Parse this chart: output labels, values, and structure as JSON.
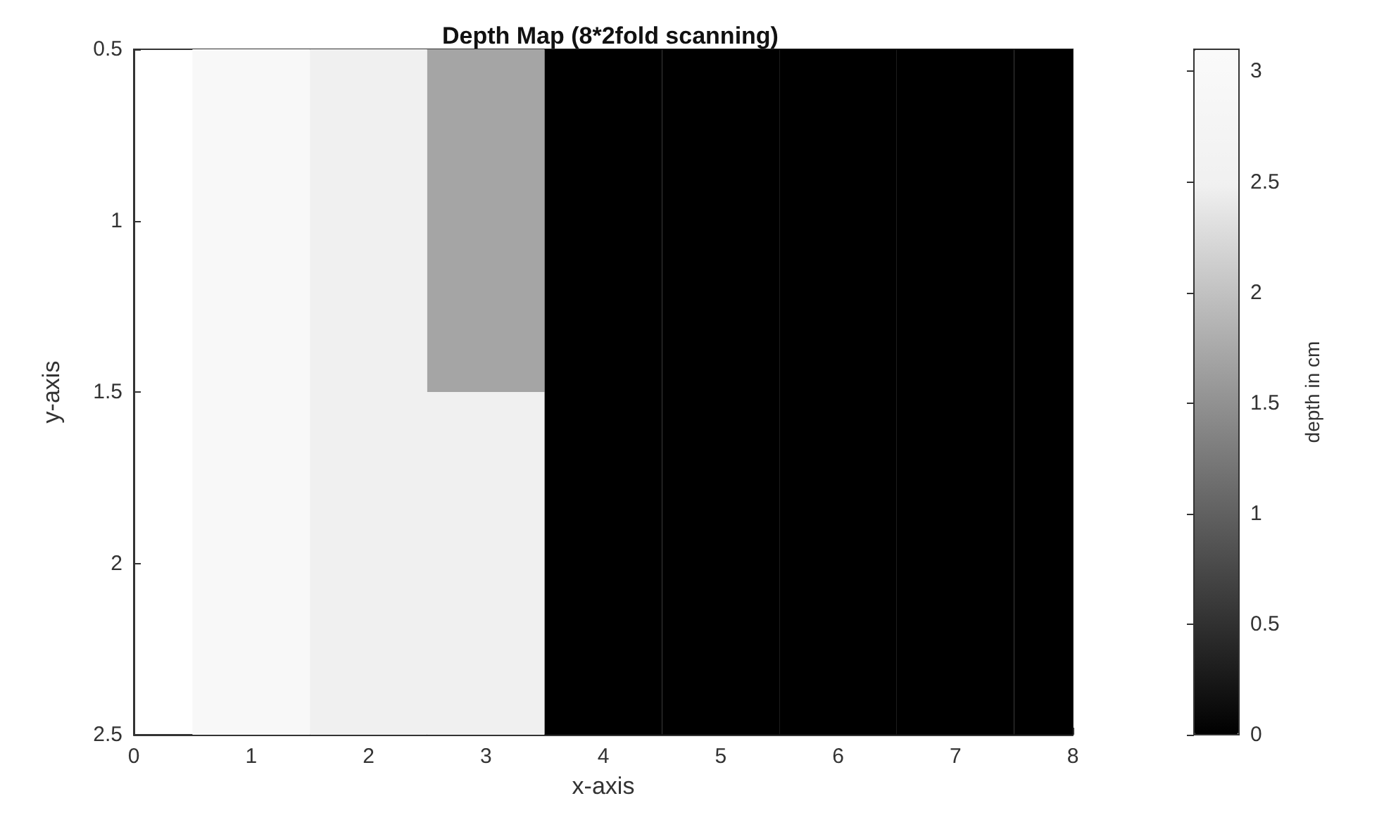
{
  "chart_data": {
    "type": "heatmap",
    "title": "Depth Map (8*2fold scanning)",
    "xlabel": "x-axis",
    "ylabel": "y-axis",
    "clabel": "depth in cm",
    "x": [
      1,
      2,
      3,
      4,
      5,
      6,
      7,
      8
    ],
    "cells": [
      [
        3,
        2.5,
        1.7,
        0,
        0,
        0,
        0,
        0
      ],
      [
        3,
        2.5,
        2.5,
        0,
        0,
        0,
        0,
        0
      ]
    ],
    "xlim": [
      0,
      8
    ],
    "xticks": [
      0,
      1,
      2,
      3,
      4,
      5,
      6,
      7,
      8
    ],
    "ylim": [
      2.5,
      0.5
    ],
    "yticks": [
      0.5,
      1,
      1.5,
      2,
      2.5
    ],
    "clim": [
      0,
      3.1
    ],
    "cticks": [
      0,
      0.5,
      1,
      1.5,
      2,
      2.5,
      3
    ]
  }
}
